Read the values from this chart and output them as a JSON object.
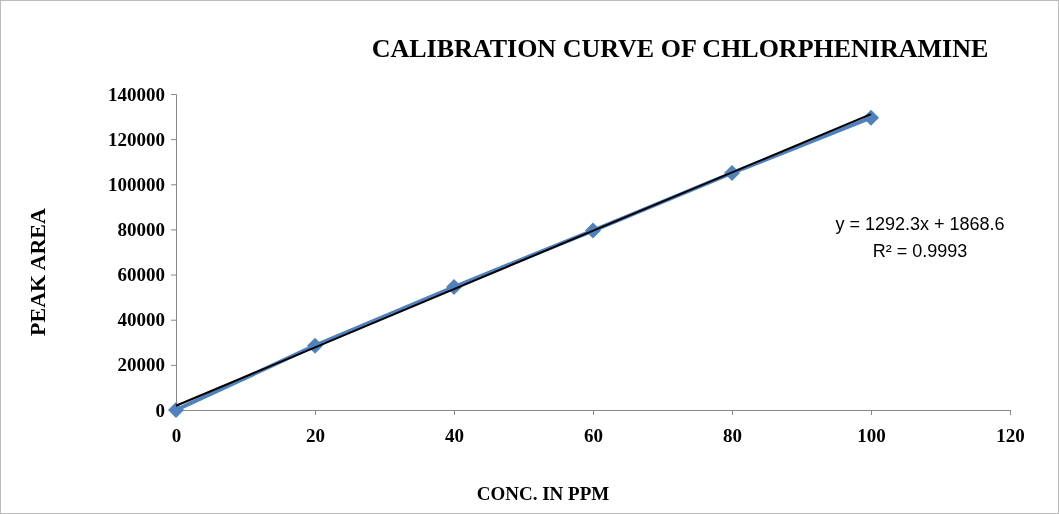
{
  "chart_data": {
    "type": "line",
    "title": "CALIBRATION CURVE OF CHLORPHENIRAMINE",
    "xlabel": "CONC. IN PPM",
    "ylabel": "PEAK AREA",
    "annotations": [
      "y = 1292.3x + 1868.6",
      "R² = 0.9993"
    ],
    "xlim": [
      0,
      120
    ],
    "xticks": [
      0,
      20,
      40,
      60,
      80,
      100,
      120
    ],
    "ylim": [
      0,
      140000
    ],
    "yticks": [
      0,
      20000,
      40000,
      60000,
      80000,
      100000,
      120000,
      140000
    ],
    "grid": false,
    "series": [
      {
        "color": "#4f81bd",
        "marker": "diamond",
        "x": [
          0,
          20,
          40,
          60,
          80,
          100
        ],
        "values": [
          0,
          28500,
          54500,
          79500,
          105000,
          129500
        ]
      },
      {
        "color": "#000000",
        "marker": "none",
        "x": [
          0,
          100
        ],
        "values": [
          1900,
          131100
        ]
      }
    ]
  }
}
